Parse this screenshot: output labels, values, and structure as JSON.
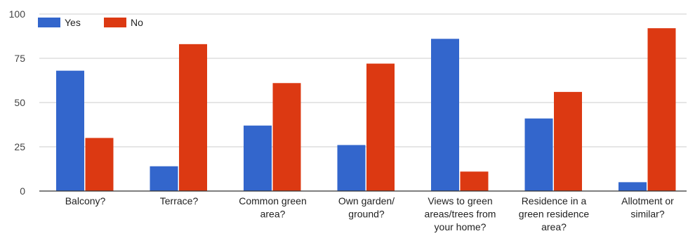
{
  "chart_data": {
    "type": "bar",
    "categories": [
      [
        "Balcony?"
      ],
      [
        "Terrace?"
      ],
      [
        "Common green",
        "area?"
      ],
      [
        "Own garden/",
        "ground?"
      ],
      [
        "Views to green",
        "areas/trees from",
        "your home?"
      ],
      [
        "Residence in a",
        "green residence",
        "area?"
      ],
      [
        "Allotment or",
        "similar?"
      ]
    ],
    "series": [
      {
        "name": "Yes",
        "color": "#3366cc",
        "values": [
          68,
          14,
          37,
          26,
          86,
          41,
          5
        ]
      },
      {
        "name": "No",
        "color": "#dc3912",
        "values": [
          30,
          83,
          61,
          72,
          11,
          56,
          92
        ]
      }
    ],
    "ylim": [
      0,
      100
    ],
    "yticks": [
      "0",
      "25",
      "50",
      "75",
      "100"
    ],
    "grid": true,
    "legend_position": "top-left"
  }
}
